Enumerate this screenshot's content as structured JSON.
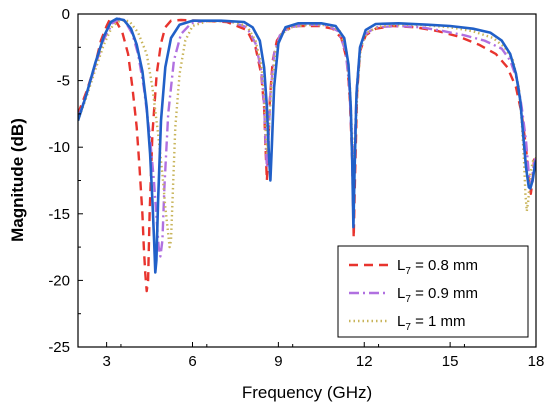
{
  "chart_data": {
    "type": "line",
    "xlabel": "Frequency (GHz)",
    "ylabel": "Magnitude (dB)",
    "xlim": [
      2,
      18
    ],
    "ylim": [
      -25,
      0
    ],
    "xticks": [
      3,
      6,
      9,
      12,
      15,
      18
    ],
    "yticks": [
      0,
      -5,
      -10,
      -15,
      -20,
      -25
    ],
    "xtick_labels": [
      "3",
      "6",
      "9",
      "12",
      "15",
      "18"
    ],
    "ytick_labels": [
      "0",
      "-5",
      "-10",
      "-15",
      "-20",
      "-25"
    ],
    "grid": false,
    "legend_position": "bottom-right",
    "series": [
      {
        "name_prefix": "L",
        "name_sub": "7",
        "name_suffix": " = 0.8 mm",
        "color": "#e8342e",
        "style": "dashed",
        "points": [
          [
            2.0,
            -7.5
          ],
          [
            2.3,
            -5.8
          ],
          [
            2.6,
            -3.8
          ],
          [
            2.8,
            -2.0
          ],
          [
            3.0,
            -0.9
          ],
          [
            3.1,
            -0.45
          ],
          [
            3.2,
            -0.35
          ],
          [
            3.35,
            -0.6
          ],
          [
            3.55,
            -1.4
          ],
          [
            3.75,
            -3.0
          ],
          [
            3.9,
            -5.5
          ],
          [
            4.05,
            -8.5
          ],
          [
            4.15,
            -11.5
          ],
          [
            4.25,
            -15.0
          ],
          [
            4.3,
            -17.5
          ],
          [
            4.35,
            -19.5
          ],
          [
            4.4,
            -20.8
          ],
          [
            4.45,
            -20.0
          ],
          [
            4.5,
            -15.0
          ],
          [
            4.6,
            -9.0
          ],
          [
            4.75,
            -4.5
          ],
          [
            4.9,
            -2.2
          ],
          [
            5.05,
            -1.0
          ],
          [
            5.25,
            -0.5
          ],
          [
            5.6,
            -0.45
          ],
          [
            6.3,
            -0.5
          ],
          [
            7.2,
            -0.6
          ],
          [
            7.9,
            -1.2
          ],
          [
            8.2,
            -2.5
          ],
          [
            8.4,
            -4.5
          ],
          [
            8.5,
            -7.0
          ],
          [
            8.55,
            -10.0
          ],
          [
            8.6,
            -12.5
          ],
          [
            8.65,
            -10.0
          ],
          [
            8.7,
            -6.5
          ],
          [
            8.8,
            -3.5
          ],
          [
            8.95,
            -2.0
          ],
          [
            9.2,
            -1.2
          ],
          [
            9.7,
            -0.9
          ],
          [
            10.4,
            -0.9
          ],
          [
            10.9,
            -1.1
          ],
          [
            11.2,
            -1.8
          ],
          [
            11.4,
            -3.5
          ],
          [
            11.5,
            -6.5
          ],
          [
            11.58,
            -11.0
          ],
          [
            11.63,
            -16.8
          ],
          [
            11.68,
            -12.0
          ],
          [
            11.75,
            -6.0
          ],
          [
            11.85,
            -2.8
          ],
          [
            12.05,
            -1.6
          ],
          [
            12.4,
            -1.1
          ],
          [
            13.0,
            -0.9
          ],
          [
            13.8,
            -1.0
          ],
          [
            14.6,
            -1.3
          ],
          [
            15.3,
            -1.7
          ],
          [
            16.0,
            -2.3
          ],
          [
            16.6,
            -3.0
          ],
          [
            17.0,
            -4.0
          ],
          [
            17.3,
            -5.5
          ],
          [
            17.5,
            -7.5
          ],
          [
            17.65,
            -10.0
          ],
          [
            17.75,
            -12.5
          ],
          [
            17.82,
            -13.5
          ],
          [
            17.88,
            -12.5
          ],
          [
            17.93,
            -11.0
          ],
          [
            18.0,
            -10.5
          ]
        ]
      },
      {
        "name_prefix": "L",
        "name_sub": "7",
        "name_suffix": " = 0.9 mm",
        "color": "#b070e0",
        "style": "dashdot",
        "points": [
          [
            2.0,
            -7.8
          ],
          [
            2.3,
            -6.0
          ],
          [
            2.6,
            -3.9
          ],
          [
            2.9,
            -1.9
          ],
          [
            3.2,
            -0.7
          ],
          [
            3.45,
            -0.35
          ],
          [
            3.65,
            -0.55
          ],
          [
            3.9,
            -1.5
          ],
          [
            4.1,
            -3.0
          ],
          [
            4.3,
            -5.5
          ],
          [
            4.5,
            -9.0
          ],
          [
            4.65,
            -12.5
          ],
          [
            4.75,
            -15.5
          ],
          [
            4.82,
            -17.5
          ],
          [
            4.88,
            -18.2
          ],
          [
            4.95,
            -17.0
          ],
          [
            5.02,
            -13.0
          ],
          [
            5.15,
            -7.5
          ],
          [
            5.35,
            -3.5
          ],
          [
            5.6,
            -1.5
          ],
          [
            5.95,
            -0.7
          ],
          [
            6.5,
            -0.5
          ],
          [
            7.3,
            -0.55
          ],
          [
            7.9,
            -1.0
          ],
          [
            8.2,
            -2.2
          ],
          [
            8.4,
            -4.2
          ],
          [
            8.5,
            -6.8
          ],
          [
            8.55,
            -9.5
          ],
          [
            8.6,
            -11.5
          ],
          [
            8.65,
            -9.5
          ],
          [
            8.72,
            -6.0
          ],
          [
            8.85,
            -3.0
          ],
          [
            9.05,
            -1.6
          ],
          [
            9.4,
            -1.0
          ],
          [
            10.0,
            -0.8
          ],
          [
            10.7,
            -0.85
          ],
          [
            11.1,
            -1.3
          ],
          [
            11.35,
            -2.8
          ],
          [
            11.48,
            -5.5
          ],
          [
            11.56,
            -9.5
          ],
          [
            11.6,
            -13.0
          ],
          [
            11.66,
            -10.0
          ],
          [
            11.74,
            -5.5
          ],
          [
            11.85,
            -2.6
          ],
          [
            12.05,
            -1.5
          ],
          [
            12.4,
            -1.0
          ],
          [
            13.2,
            -0.9
          ],
          [
            14.0,
            -1.0
          ],
          [
            14.8,
            -1.3
          ],
          [
            15.5,
            -1.6
          ],
          [
            16.2,
            -2.0
          ],
          [
            16.8,
            -2.6
          ],
          [
            17.1,
            -3.5
          ],
          [
            17.35,
            -5.0
          ],
          [
            17.5,
            -7.0
          ],
          [
            17.65,
            -9.5
          ],
          [
            17.75,
            -12.0
          ],
          [
            17.82,
            -12.8
          ],
          [
            17.88,
            -12.0
          ],
          [
            17.95,
            -11.0
          ],
          [
            18.0,
            -10.8
          ]
        ]
      },
      {
        "name_prefix": "L",
        "name_sub": "7",
        "name_suffix": " = 1 mm",
        "color": "#c8b45a",
        "style": "dotted",
        "points": [
          [
            2.0,
            -8.0
          ],
          [
            2.3,
            -6.2
          ],
          [
            2.6,
            -4.2
          ],
          [
            2.9,
            -2.3
          ],
          [
            3.2,
            -0.9
          ],
          [
            3.5,
            -0.45
          ],
          [
            3.8,
            -0.55
          ],
          [
            4.1,
            -1.4
          ],
          [
            4.4,
            -3.0
          ],
          [
            4.6,
            -5.5
          ],
          [
            4.8,
            -9.0
          ],
          [
            4.95,
            -12.0
          ],
          [
            5.05,
            -14.5
          ],
          [
            5.15,
            -16.5
          ],
          [
            5.2,
            -17.5
          ],
          [
            5.25,
            -17.0
          ],
          [
            5.3,
            -14.0
          ],
          [
            5.4,
            -8.5
          ],
          [
            5.55,
            -4.5
          ],
          [
            5.75,
            -2.0
          ],
          [
            6.0,
            -0.9
          ],
          [
            6.5,
            -0.55
          ],
          [
            7.3,
            -0.55
          ],
          [
            7.9,
            -0.9
          ],
          [
            8.2,
            -2.0
          ],
          [
            8.4,
            -3.8
          ],
          [
            8.5,
            -6.0
          ],
          [
            8.55,
            -8.5
          ],
          [
            8.6,
            -10.5
          ],
          [
            8.66,
            -9.0
          ],
          [
            8.75,
            -5.5
          ],
          [
            8.9,
            -2.8
          ],
          [
            9.1,
            -1.5
          ],
          [
            9.5,
            -0.95
          ],
          [
            10.2,
            -0.8
          ],
          [
            10.8,
            -0.85
          ],
          [
            11.15,
            -1.3
          ],
          [
            11.38,
            -2.8
          ],
          [
            11.5,
            -5.5
          ],
          [
            11.58,
            -9.5
          ],
          [
            11.62,
            -13.0
          ],
          [
            11.68,
            -10.0
          ],
          [
            11.76,
            -5.5
          ],
          [
            11.88,
            -2.5
          ],
          [
            12.1,
            -1.4
          ],
          [
            12.5,
            -0.95
          ],
          [
            13.3,
            -0.8
          ],
          [
            14.2,
            -0.85
          ],
          [
            15.0,
            -1.0
          ],
          [
            15.8,
            -1.3
          ],
          [
            16.5,
            -1.8
          ],
          [
            16.9,
            -2.5
          ],
          [
            17.2,
            -3.5
          ],
          [
            17.4,
            -5.5
          ],
          [
            17.5,
            -8.0
          ],
          [
            17.58,
            -11.0
          ],
          [
            17.63,
            -13.5
          ],
          [
            17.68,
            -14.8
          ],
          [
            17.73,
            -14.0
          ],
          [
            17.8,
            -12.0
          ],
          [
            17.9,
            -11.0
          ],
          [
            18.0,
            -10.8
          ]
        ]
      },
      {
        "name_prefix": "",
        "name_sub": "",
        "name_suffix": "",
        "legend": false,
        "color": "#2160c8",
        "style": "solid",
        "points": [
          [
            2.0,
            -8.0
          ],
          [
            2.3,
            -6.0
          ],
          [
            2.6,
            -3.7
          ],
          [
            2.9,
            -1.7
          ],
          [
            3.15,
            -0.6
          ],
          [
            3.35,
            -0.35
          ],
          [
            3.6,
            -0.45
          ],
          [
            3.85,
            -1.1
          ],
          [
            4.05,
            -2.3
          ],
          [
            4.25,
            -4.3
          ],
          [
            4.4,
            -7.0
          ],
          [
            4.52,
            -10.5
          ],
          [
            4.6,
            -14.0
          ],
          [
            4.66,
            -17.0
          ],
          [
            4.7,
            -19.4
          ],
          [
            4.74,
            -18.5
          ],
          [
            4.8,
            -14.0
          ],
          [
            4.9,
            -8.0
          ],
          [
            5.05,
            -4.0
          ],
          [
            5.25,
            -1.8
          ],
          [
            5.55,
            -0.8
          ],
          [
            6.0,
            -0.5
          ],
          [
            7.0,
            -0.5
          ],
          [
            7.8,
            -0.6
          ],
          [
            8.1,
            -1.0
          ],
          [
            8.35,
            -2.0
          ],
          [
            8.5,
            -4.0
          ],
          [
            8.6,
            -7.0
          ],
          [
            8.67,
            -10.5
          ],
          [
            8.72,
            -12.5
          ],
          [
            8.77,
            -10.0
          ],
          [
            8.85,
            -5.5
          ],
          [
            9.0,
            -2.2
          ],
          [
            9.25,
            -1.0
          ],
          [
            9.7,
            -0.7
          ],
          [
            10.5,
            -0.7
          ],
          [
            11.0,
            -0.9
          ],
          [
            11.3,
            -1.8
          ],
          [
            11.45,
            -3.8
          ],
          [
            11.53,
            -7.0
          ],
          [
            11.58,
            -11.0
          ],
          [
            11.62,
            -16.0
          ],
          [
            11.66,
            -12.0
          ],
          [
            11.73,
            -6.0
          ],
          [
            11.85,
            -2.5
          ],
          [
            12.05,
            -1.2
          ],
          [
            12.4,
            -0.75
          ],
          [
            13.2,
            -0.7
          ],
          [
            14.2,
            -0.8
          ],
          [
            15.0,
            -0.9
          ],
          [
            15.8,
            -1.1
          ],
          [
            16.4,
            -1.4
          ],
          [
            16.8,
            -2.0
          ],
          [
            17.1,
            -3.0
          ],
          [
            17.3,
            -4.5
          ],
          [
            17.45,
            -6.5
          ],
          [
            17.55,
            -9.0
          ],
          [
            17.65,
            -11.5
          ],
          [
            17.75,
            -13.0
          ],
          [
            17.8,
            -13.1
          ],
          [
            17.88,
            -12.5
          ],
          [
            17.95,
            -11.5
          ],
          [
            18.0,
            -11.0
          ]
        ]
      }
    ]
  }
}
